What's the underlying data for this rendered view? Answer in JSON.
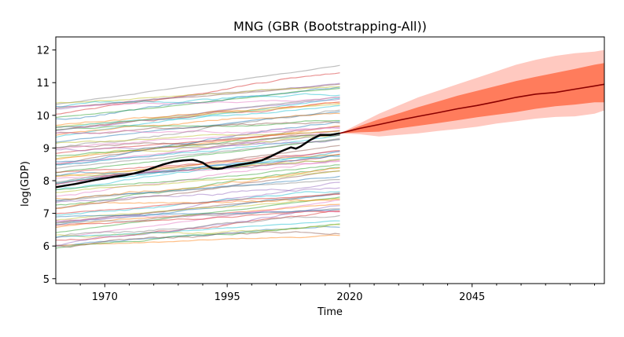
{
  "chart_data": {
    "type": "line",
    "title": "MNG (GBR (Bootstrapping-All))",
    "xlabel": "Time",
    "ylabel": "log(GDP)",
    "xlim": [
      1960,
      2072
    ],
    "ylim": [
      4.85,
      12.4
    ],
    "x_ticks": [
      1970,
      1995,
      2020,
      2045
    ],
    "y_ticks": [
      5,
      6,
      7,
      8,
      9,
      10,
      11,
      12
    ],
    "x_tick_labels": [
      "1970",
      "1995",
      "2020",
      "2045"
    ],
    "y_tick_labels": [
      "5",
      "6",
      "7",
      "8",
      "9",
      "10",
      "11",
      "12"
    ],
    "grid": false,
    "legend": "none",
    "history_range": [
      1960,
      2018
    ],
    "background_series_count": 80,
    "background_colors": [
      "#1f77b4",
      "#ff7f0e",
      "#2ca02c",
      "#d62728",
      "#9467bd",
      "#8c564b",
      "#e377c2",
      "#7f7f7f",
      "#bcbd22",
      "#17becf"
    ],
    "highlight_series": {
      "color": "#000000",
      "x": [
        1960,
        1962,
        1964,
        1966,
        1968,
        1970,
        1972,
        1974,
        1976,
        1978,
        1980,
        1982,
        1984,
        1986,
        1988,
        1989,
        1990,
        1991,
        1992,
        1993,
        1994,
        1995,
        1996,
        1998,
        2000,
        2002,
        2004,
        2006,
        2008,
        2009,
        2010,
        2012,
        2014,
        2016,
        2018
      ],
      "y": [
        7.8,
        7.85,
        7.9,
        7.96,
        8.02,
        8.07,
        8.12,
        8.16,
        8.22,
        8.3,
        8.4,
        8.5,
        8.58,
        8.62,
        8.64,
        8.6,
        8.55,
        8.45,
        8.38,
        8.36,
        8.38,
        8.42,
        8.45,
        8.5,
        8.55,
        8.62,
        8.75,
        8.9,
        9.02,
        8.98,
        9.05,
        9.25,
        9.4,
        9.4,
        9.45
      ]
    },
    "forecast": {
      "x": [
        2018,
        2022,
        2026,
        2030,
        2034,
        2038,
        2042,
        2046,
        2050,
        2054,
        2058,
        2062,
        2066,
        2070,
        2072
      ],
      "median": [
        9.45,
        9.6,
        9.72,
        9.85,
        9.97,
        10.08,
        10.2,
        10.3,
        10.42,
        10.55,
        10.65,
        10.7,
        10.8,
        10.9,
        10.95
      ],
      "inner_lo": [
        9.45,
        9.48,
        9.5,
        9.6,
        9.68,
        9.76,
        9.85,
        9.94,
        10.02,
        10.1,
        10.2,
        10.28,
        10.33,
        10.4,
        10.4
      ],
      "inner_hi": [
        9.45,
        9.67,
        9.88,
        10.06,
        10.25,
        10.42,
        10.6,
        10.75,
        10.9,
        11.05,
        11.18,
        11.3,
        11.42,
        11.55,
        11.6
      ],
      "outer_lo": [
        9.45,
        9.42,
        9.35,
        9.4,
        9.45,
        9.52,
        9.58,
        9.65,
        9.75,
        9.82,
        9.9,
        9.95,
        9.97,
        10.05,
        10.15
      ],
      "outer_hi": [
        9.45,
        9.75,
        10.05,
        10.3,
        10.55,
        10.75,
        10.95,
        11.15,
        11.35,
        11.55,
        11.7,
        11.82,
        11.9,
        11.95,
        12.0
      ],
      "line_color": "#8b0000",
      "inner_color": "#ff7c5c",
      "outer_color": "#ffc9c0"
    }
  }
}
